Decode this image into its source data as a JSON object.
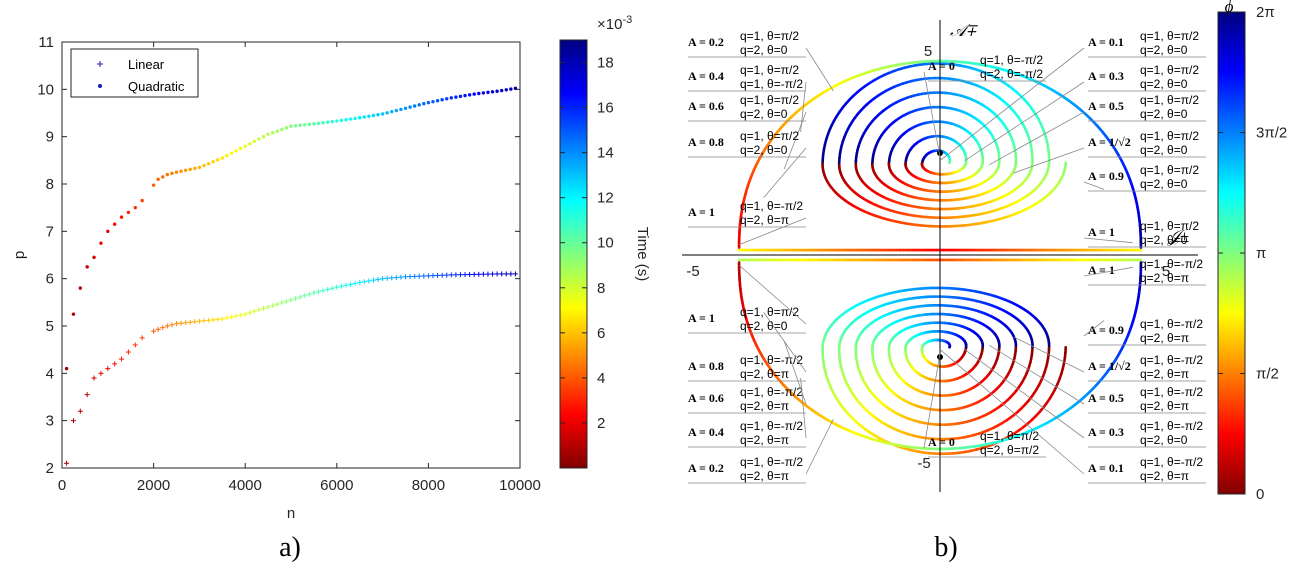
{
  "chart_data": [
    {
      "id": "a",
      "type": "scatter",
      "panel_label": "a)",
      "xlabel": "n",
      "ylabel": "p",
      "xlim": [
        0,
        10000
      ],
      "ylim": [
        2,
        11
      ],
      "xticks": [
        "0",
        "2000",
        "4000",
        "6000",
        "8000",
        "10000"
      ],
      "yticks": [
        "2",
        "3",
        "4",
        "5",
        "6",
        "7",
        "8",
        "9",
        "10",
        "11"
      ],
      "legend": {
        "position": "top-left",
        "entries": [
          "Linear",
          "Quadratic"
        ]
      },
      "colorbar": {
        "label": "Time (s)",
        "range": [
          0,
          0.019
        ],
        "tick_values": [
          2,
          4,
          6,
          8,
          10,
          12,
          14,
          16,
          18
        ],
        "ticks": [
          "2",
          "4",
          "6",
          "8",
          "10",
          "12",
          "14",
          "16",
          "18"
        ],
        "exponent": "×10",
        "exponent_power": "-3"
      },
      "series": [
        {
          "name": "Linear",
          "marker": "plus",
          "points_n_p": [
            [
              100,
              2.1
            ],
            [
              250,
              3.0
            ],
            [
              400,
              3.2
            ],
            [
              550,
              3.55
            ],
            [
              700,
              3.9
            ],
            [
              850,
              4.0
            ],
            [
              1000,
              4.1
            ],
            [
              1150,
              4.2
            ],
            [
              1300,
              4.3
            ],
            [
              1450,
              4.45
            ],
            [
              1600,
              4.6
            ],
            [
              1750,
              4.75
            ],
            [
              1900,
              4.85
            ],
            [
              2100,
              4.93
            ],
            [
              2300,
              5.0
            ],
            [
              2500,
              5.05
            ],
            [
              3000,
              5.1
            ],
            [
              3500,
              5.15
            ],
            [
              4000,
              5.25
            ],
            [
              4500,
              5.4
            ],
            [
              5000,
              5.55
            ],
            [
              5500,
              5.7
            ],
            [
              6000,
              5.82
            ],
            [
              6500,
              5.92
            ],
            [
              7000,
              6.0
            ],
            [
              7500,
              6.04
            ],
            [
              8000,
              6.06
            ],
            [
              8500,
              6.08
            ],
            [
              9000,
              6.09
            ],
            [
              9500,
              6.1
            ],
            [
              9900,
              6.1
            ]
          ]
        },
        {
          "name": "Quadratic",
          "marker": "dot",
          "points_n_p": [
            [
              100,
              4.1
            ],
            [
              250,
              5.25
            ],
            [
              400,
              5.8
            ],
            [
              550,
              6.25
            ],
            [
              700,
              6.45
            ],
            [
              850,
              6.75
            ],
            [
              1000,
              7.0
            ],
            [
              1150,
              7.15
            ],
            [
              1300,
              7.3
            ],
            [
              1450,
              7.4
            ],
            [
              1600,
              7.5
            ],
            [
              1750,
              7.65
            ],
            [
              1900,
              7.85
            ],
            [
              2100,
              8.1
            ],
            [
              2300,
              8.2
            ],
            [
              2500,
              8.25
            ],
            [
              3000,
              8.35
            ],
            [
              3500,
              8.55
            ],
            [
              4000,
              8.8
            ],
            [
              4500,
              9.05
            ],
            [
              5000,
              9.22
            ],
            [
              5500,
              9.27
            ],
            [
              6000,
              9.33
            ],
            [
              6500,
              9.4
            ],
            [
              7000,
              9.48
            ],
            [
              7500,
              9.6
            ],
            [
              8000,
              9.72
            ],
            [
              8500,
              9.82
            ],
            [
              9000,
              9.9
            ],
            [
              9500,
              9.96
            ],
            [
              9900,
              10.02
            ]
          ]
        }
      ]
    },
    {
      "id": "b",
      "type": "line",
      "panel_label": "b)",
      "axis_range": [
        -5,
        5
      ],
      "axis_ticks": {
        "top": "5",
        "bottom": "-5",
        "left": "-5",
        "right": "5"
      },
      "axis_labels": {
        "vertical": "𝒜∓",
        "horizontal": "𝒥±"
      },
      "colorbar": {
        "label": "ϕ",
        "range": [
          0,
          6.2832
        ],
        "ticks": [
          "0",
          "π/2",
          "π",
          "3π/2",
          "2π"
        ]
      },
      "curves": {
        "spirals": [
          {
            "center_y": 2.25,
            "loops": 7
          },
          {
            "center_y": -2.25,
            "loops": 7
          }
        ],
        "separatrix_upper": "A = 1",
        "separatrix_lower": "A = 1"
      },
      "annotations": [
        {
          "a": "A = 0.2",
          "l1": "q=1, θ=π/2",
          "l2": "q=2, θ=0"
        },
        {
          "a": "A = 0.4",
          "l1": "q=1, θ=π/2",
          "l2": "q=1, θ=-π/2"
        },
        {
          "a": "A = 0.6",
          "l1": "q=1, θ=π/2",
          "l2": "q=2, θ=0"
        },
        {
          "a": "A = 0.8",
          "l1": "q=1, θ=π/2",
          "l2": "q=2, θ=0"
        },
        {
          "a": "A = 1",
          "l1": "q=1, θ=-π/2",
          "l2": "q=2, θ=π"
        },
        {
          "a": "A = 1",
          "l1": "q=1, θ=π/2",
          "l2": "q=2, θ=0"
        },
        {
          "a": "A = 0.8",
          "l1": "q=1, θ=-π/2",
          "l2": "q=2, θ=π"
        },
        {
          "a": "A = 0.6",
          "l1": "q=1, θ=-π/2",
          "l2": "q=2, θ=π"
        },
        {
          "a": "A = 0.4",
          "l1": "q=1, θ=-π/2",
          "l2": "q=2, θ=π"
        },
        {
          "a": "A = 0.2",
          "l1": "q=1, θ=-π/2",
          "l2": "q=2, θ=π"
        },
        {
          "a": "A = 0",
          "l1": "q=1, θ=π/2",
          "l2": "q=2, θ=π/2"
        },
        {
          "a": "A = 0.1",
          "l1": "q=1, θ=π/2",
          "l2": "q=2, θ=0"
        },
        {
          "a": "A = 0.3",
          "l1": "q=1, θ=π/2",
          "l2": "q=2, θ=0"
        },
        {
          "a": "A = 0.5",
          "l1": "q=1, θ=π/2",
          "l2": "q=2, θ=0"
        },
        {
          "a": "A = 1/√2",
          "l1": "q=1, θ=π/2",
          "l2": "q=2, θ=0"
        },
        {
          "a": "A = 0.9",
          "l1": "q=1, θ=π/2",
          "l2": "q=2, θ=0"
        },
        {
          "a": "A = 1",
          "l1": "q=1, θ=π/2",
          "l2": "q=2, θ=0"
        },
        {
          "a": "A = 1",
          "l1": "q=1, θ=-π/2",
          "l2": "q=2, θ=π"
        },
        {
          "a": "A = 0.9",
          "l1": "q=1, θ=-π/2",
          "l2": "q=2, θ=π"
        },
        {
          "a": "A = 1/√2",
          "l1": "q=1, θ=-π/2",
          "l2": "q=2, θ=π"
        },
        {
          "a": "A = 0.5",
          "l1": "q=1, θ=-π/2",
          "l2": "q=2, θ=π"
        },
        {
          "a": "A = 0.3",
          "l1": "q=1, θ=-π/2",
          "l2": "q=2, θ=0"
        },
        {
          "a": "A = 0.1",
          "l1": "q=1, θ=-π/2",
          "l2": "q=2, θ=π"
        },
        {
          "a": "A = 0",
          "l1": "q=1, θ=-π/2",
          "l2": "q=2, θ=-π/2"
        }
      ]
    }
  ]
}
